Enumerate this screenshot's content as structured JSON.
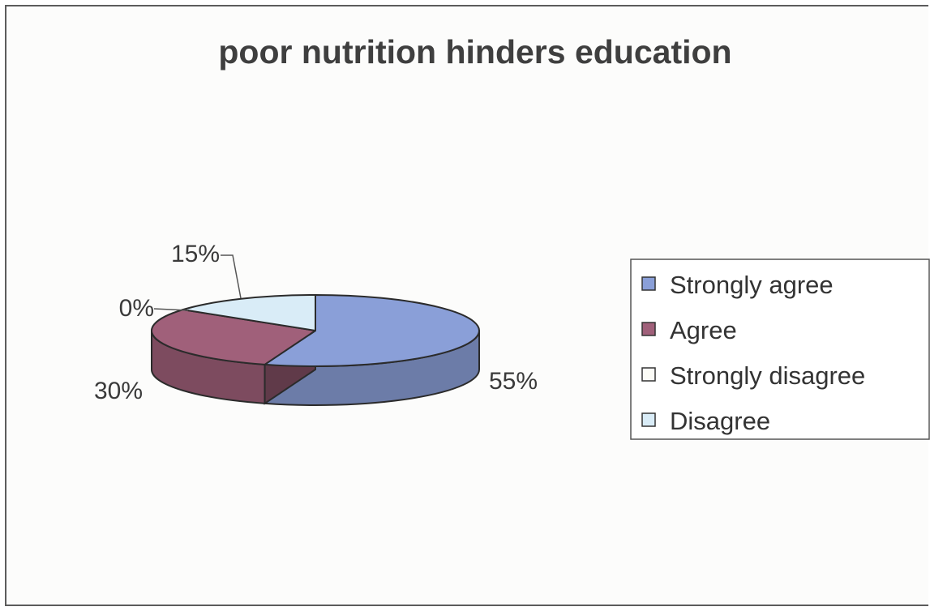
{
  "chart_data": {
    "type": "pie",
    "title": "poor nutrition hinders education",
    "categories": [
      "Strongly agree",
      "Agree",
      "Strongly disagree",
      "Disagree"
    ],
    "values": [
      55,
      30,
      0,
      15
    ],
    "data_labels": [
      "55%",
      "30%",
      "0%",
      "15%"
    ],
    "colors": [
      "#8a9fd8",
      "#a0607a",
      "#fbfbf6",
      "#d9ecf7"
    ],
    "three_d": true,
    "legend": "right"
  }
}
